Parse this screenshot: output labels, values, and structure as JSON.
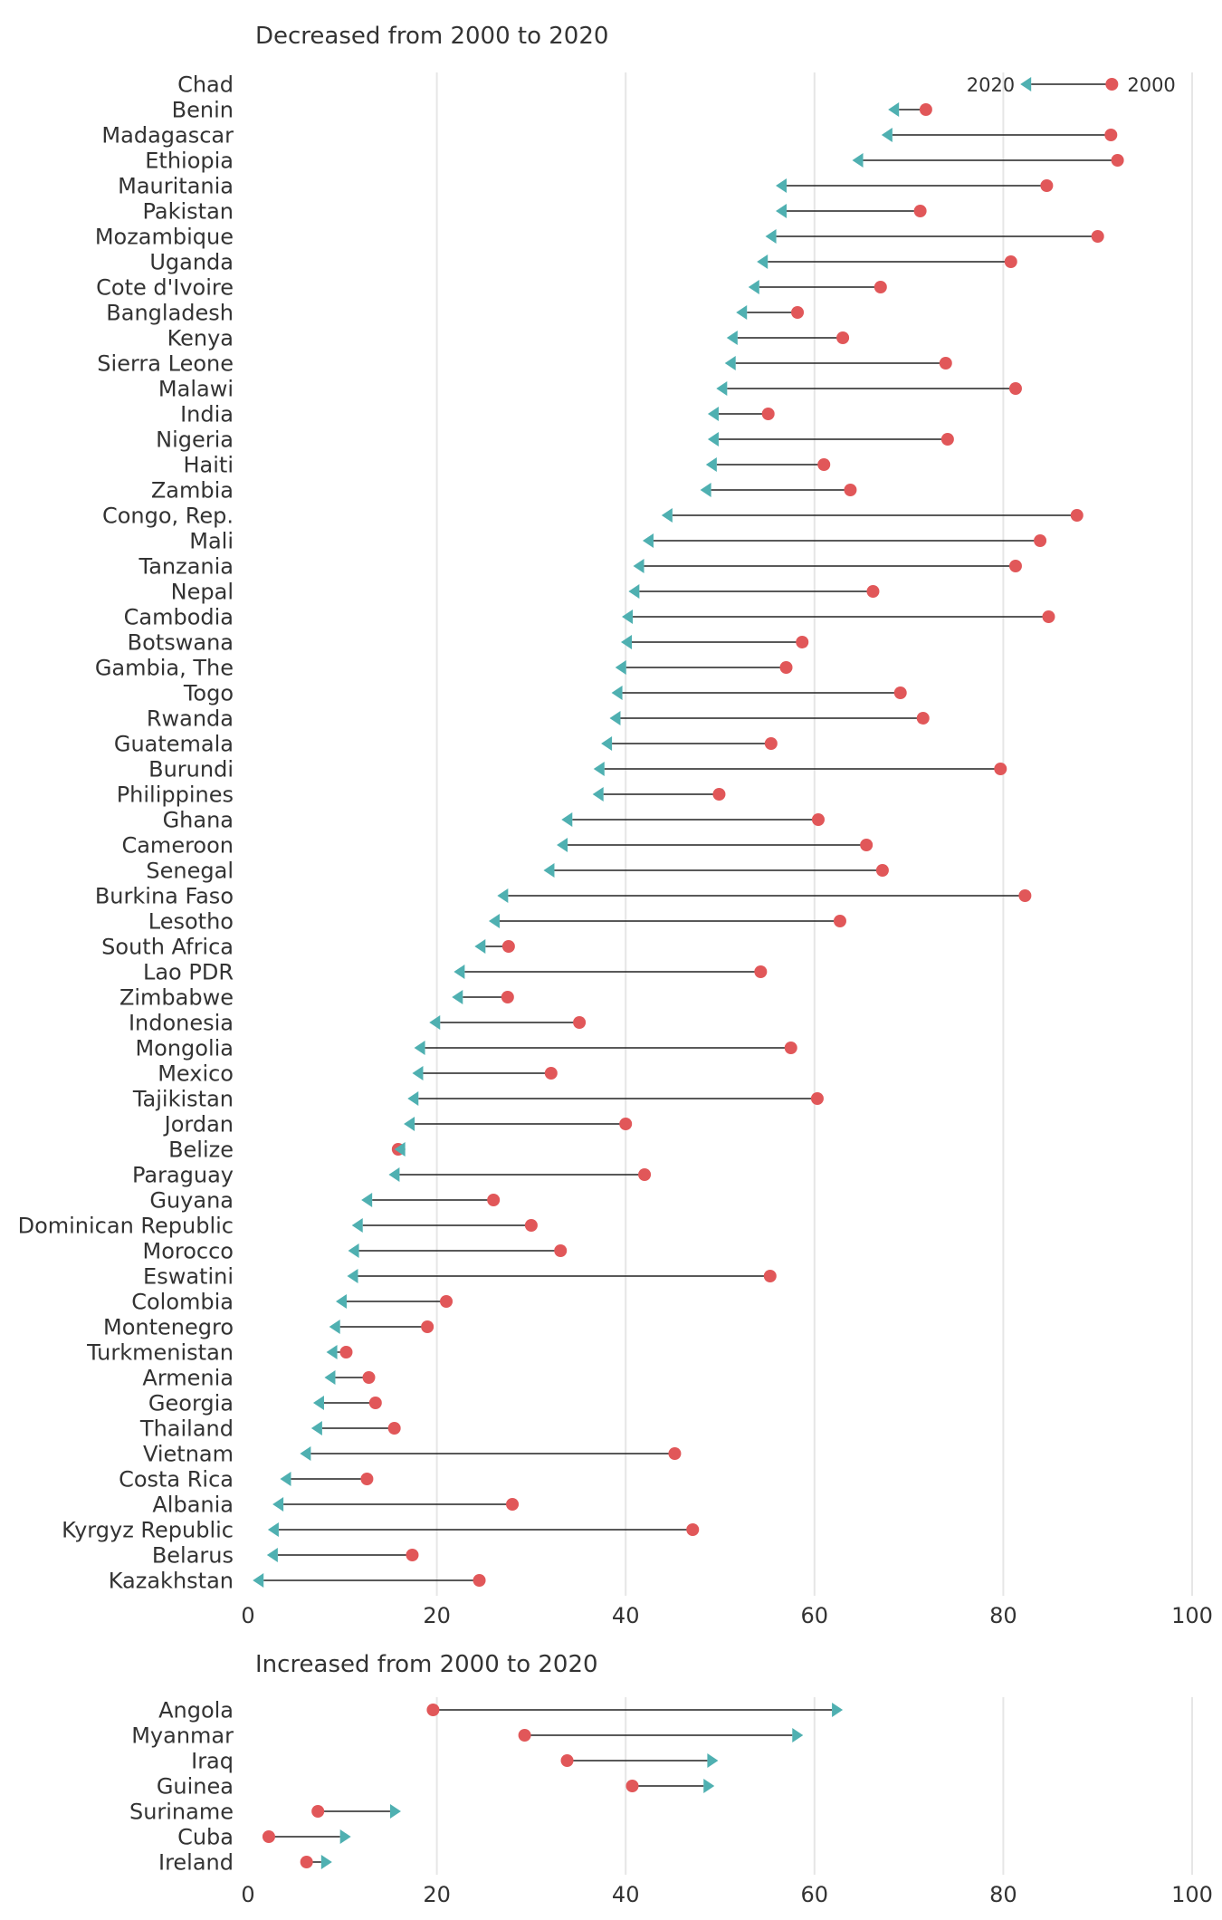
{
  "chart_data": [
    {
      "type": "dumbbell",
      "title": "Decreased from 2000 to 2020",
      "legend": {
        "start_label": "2000",
        "end_label": "2020"
      },
      "xlim": [
        0,
        100
      ],
      "xticks": [
        0,
        20,
        40,
        60,
        80,
        100
      ],
      "grid": true,
      "colors": {
        "start": "#e15759",
        "end": "#4fb0b1"
      },
      "rows": [
        {
          "country": "Chad",
          "v2000": 91.5,
          "v2020": 81.8
        },
        {
          "country": "Benin",
          "v2000": 71.8,
          "v2020": 67.8
        },
        {
          "country": "Madagascar",
          "v2000": 91.4,
          "v2020": 67.1
        },
        {
          "country": "Ethiopia",
          "v2000": 92.1,
          "v2020": 64.0
        },
        {
          "country": "Mauritania",
          "v2000": 84.6,
          "v2020": 55.9
        },
        {
          "country": "Pakistan",
          "v2000": 71.2,
          "v2020": 55.9
        },
        {
          "country": "Mozambique",
          "v2000": 90.0,
          "v2020": 54.8
        },
        {
          "country": "Uganda",
          "v2000": 80.8,
          "v2020": 53.9
        },
        {
          "country": "Cote d'Ivoire",
          "v2000": 67.0,
          "v2020": 53.0
        },
        {
          "country": "Bangladesh",
          "v2000": 58.2,
          "v2020": 51.7
        },
        {
          "country": "Kenya",
          "v2000": 63.0,
          "v2020": 50.7
        },
        {
          "country": "Sierra Leone",
          "v2000": 73.9,
          "v2020": 50.5
        },
        {
          "country": "Malawi",
          "v2000": 81.3,
          "v2020": 49.6
        },
        {
          "country": "India",
          "v2000": 55.1,
          "v2020": 48.7
        },
        {
          "country": "Nigeria",
          "v2000": 74.1,
          "v2020": 48.7
        },
        {
          "country": "Haiti",
          "v2000": 61.0,
          "v2020": 48.5
        },
        {
          "country": "Zambia",
          "v2000": 63.8,
          "v2020": 47.9
        },
        {
          "country": "Congo, Rep.",
          "v2000": 87.8,
          "v2020": 43.8
        },
        {
          "country": "Mali",
          "v2000": 83.9,
          "v2020": 41.8
        },
        {
          "country": "Tanzania",
          "v2000": 81.3,
          "v2020": 40.8
        },
        {
          "country": "Nepal",
          "v2000": 66.2,
          "v2020": 40.3
        },
        {
          "country": "Cambodia",
          "v2000": 84.8,
          "v2020": 39.6
        },
        {
          "country": "Botswana",
          "v2000": 58.7,
          "v2020": 39.5
        },
        {
          "country": "Gambia, The",
          "v2000": 57.0,
          "v2020": 38.9
        },
        {
          "country": "Togo",
          "v2000": 69.1,
          "v2020": 38.5
        },
        {
          "country": "Rwanda",
          "v2000": 71.5,
          "v2020": 38.3
        },
        {
          "country": "Guatemala",
          "v2000": 55.4,
          "v2020": 37.4
        },
        {
          "country": "Burundi",
          "v2000": 79.7,
          "v2020": 36.6
        },
        {
          "country": "Philippines",
          "v2000": 49.9,
          "v2020": 36.5
        },
        {
          "country": "Ghana",
          "v2000": 60.4,
          "v2020": 33.2
        },
        {
          "country": "Cameroon",
          "v2000": 65.5,
          "v2020": 32.7
        },
        {
          "country": "Senegal",
          "v2000": 67.2,
          "v2020": 31.3
        },
        {
          "country": "Burkina Faso",
          "v2000": 82.3,
          "v2020": 26.4
        },
        {
          "country": "Lesotho",
          "v2000": 62.7,
          "v2020": 25.5
        },
        {
          "country": "South Africa",
          "v2000": 27.6,
          "v2020": 24.0
        },
        {
          "country": "Lao PDR",
          "v2000": 54.3,
          "v2020": 21.8
        },
        {
          "country": "Zimbabwe",
          "v2000": 27.5,
          "v2020": 21.6
        },
        {
          "country": "Indonesia",
          "v2000": 35.1,
          "v2020": 19.2
        },
        {
          "country": "Mongolia",
          "v2000": 57.5,
          "v2020": 17.6
        },
        {
          "country": "Mexico",
          "v2000": 32.1,
          "v2020": 17.4
        },
        {
          "country": "Tajikistan",
          "v2000": 60.3,
          "v2020": 16.9
        },
        {
          "country": "Jordan",
          "v2000": 40.0,
          "v2020": 16.5
        },
        {
          "country": "Belize",
          "v2000": 15.9,
          "v2020": 15.5
        },
        {
          "country": "Paraguay",
          "v2000": 42.0,
          "v2020": 14.9
        },
        {
          "country": "Guyana",
          "v2000": 26.0,
          "v2020": 12.0
        },
        {
          "country": "Dominican Republic",
          "v2000": 30.0,
          "v2020": 11.0
        },
        {
          "country": "Morocco",
          "v2000": 33.1,
          "v2020": 10.6
        },
        {
          "country": "Eswatini",
          "v2000": 55.3,
          "v2020": 10.5
        },
        {
          "country": "Colombia",
          "v2000": 21.0,
          "v2020": 9.3
        },
        {
          "country": "Montenegro",
          "v2000": 19.0,
          "v2020": 8.6
        },
        {
          "country": "Turkmenistan",
          "v2000": 10.4,
          "v2020": 8.3
        },
        {
          "country": "Armenia",
          "v2000": 12.8,
          "v2020": 8.1
        },
        {
          "country": "Georgia",
          "v2000": 13.5,
          "v2020": 6.9
        },
        {
          "country": "Thailand",
          "v2000": 15.5,
          "v2020": 6.7
        },
        {
          "country": "Vietnam",
          "v2000": 45.2,
          "v2020": 5.5
        },
        {
          "country": "Costa Rica",
          "v2000": 12.6,
          "v2020": 3.4
        },
        {
          "country": "Albania",
          "v2000": 28.0,
          "v2020": 2.6
        },
        {
          "country": "Kyrgyz Republic",
          "v2000": 47.1,
          "v2020": 2.1
        },
        {
          "country": "Belarus",
          "v2000": 17.4,
          "v2020": 2.0
        },
        {
          "country": "Kazakhstan",
          "v2000": 24.5,
          "v2020": 0.5
        }
      ]
    },
    {
      "type": "dumbbell",
      "title": "Increased from 2000 to 2020",
      "xlim": [
        0,
        100
      ],
      "xticks": [
        0,
        20,
        40,
        60,
        80,
        100
      ],
      "grid": true,
      "colors": {
        "start": "#e15759",
        "end": "#4fb0b1"
      },
      "rows": [
        {
          "country": "Angola",
          "v2000": 19.6,
          "v2020": 63.0
        },
        {
          "country": "Myanmar",
          "v2000": 29.3,
          "v2020": 58.8
        },
        {
          "country": "Iraq",
          "v2000": 33.8,
          "v2020": 49.8
        },
        {
          "country": "Guinea",
          "v2000": 40.7,
          "v2020": 49.4
        },
        {
          "country": "Suriname",
          "v2000": 7.4,
          "v2020": 16.2
        },
        {
          "country": "Cuba",
          "v2000": 2.2,
          "v2020": 10.9
        },
        {
          "country": "Ireland",
          "v2000": 6.2,
          "v2020": 8.9
        }
      ]
    }
  ]
}
